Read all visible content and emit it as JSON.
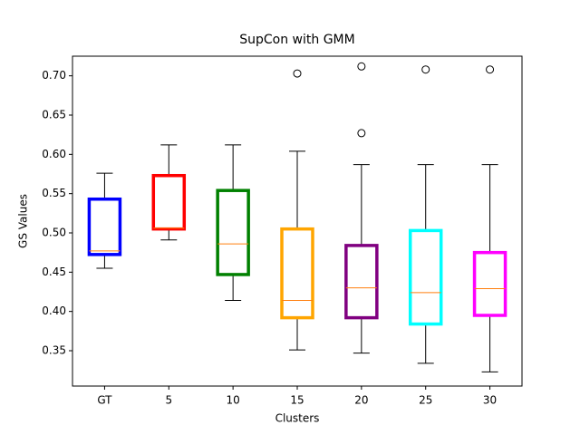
{
  "chart_data": {
    "type": "box",
    "title": "SupCon with GMM",
    "x_label": "Clusters",
    "y_label": "GS Values",
    "categories": [
      "GT",
      "5",
      "10",
      "15",
      "20",
      "25",
      "30"
    ],
    "boxes": [
      {
        "color": "#0000ff",
        "whislo": 0.455,
        "q1": 0.4725,
        "med": 0.477,
        "q3": 0.543,
        "whishi": 0.576,
        "fliers": []
      },
      {
        "color": "#ff0000",
        "whislo": 0.491,
        "q1": 0.505,
        "med": 0.506,
        "q3": 0.573,
        "whishi": 0.612,
        "fliers": []
      },
      {
        "color": "#008000",
        "whislo": 0.414,
        "q1": 0.447,
        "med": 0.486,
        "q3": 0.554,
        "whishi": 0.612,
        "fliers": []
      },
      {
        "color": "#ffa500",
        "whislo": 0.351,
        "q1": 0.392,
        "med": 0.414,
        "q3": 0.505,
        "whishi": 0.604,
        "fliers": [
          0.703
        ]
      },
      {
        "color": "#800080",
        "whislo": 0.347,
        "q1": 0.392,
        "med": 0.43,
        "q3": 0.484,
        "whishi": 0.587,
        "fliers": [
          0.712,
          0.627
        ]
      },
      {
        "color": "#00ffff",
        "whislo": 0.334,
        "q1": 0.384,
        "med": 0.424,
        "q3": 0.503,
        "whishi": 0.587,
        "fliers": [
          0.708
        ]
      },
      {
        "color": "#ff00ff",
        "whislo": 0.323,
        "q1": 0.395,
        "med": 0.429,
        "q3": 0.475,
        "whishi": 0.587,
        "fliers": [
          0.708
        ]
      }
    ],
    "median_color": "#ff7f0e",
    "ylim": [
      0.305,
      0.725
    ],
    "yticks": [
      0.35,
      {
        "value": 0.4,
        "label": "0.40"
      },
      0.45,
      {
        "value": 0.5,
        "label": "0.50"
      },
      0.55,
      {
        "value": 0.6,
        "label": "0.60"
      },
      0.65,
      {
        "value": 0.7,
        "label": "0.70"
      }
    ],
    "grid": false
  }
}
